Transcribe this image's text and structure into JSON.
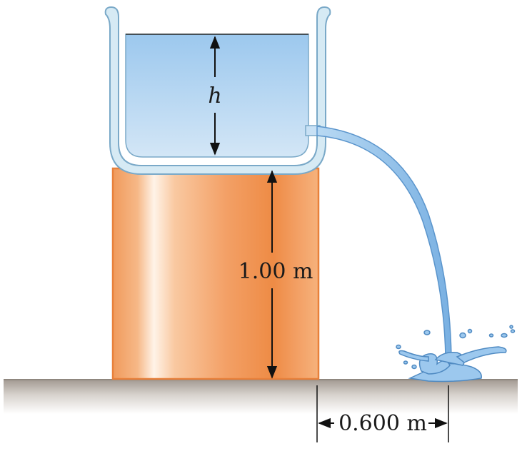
{
  "labels": {
    "water_height": "h",
    "table_height": "1.00 m",
    "horizontal_distance": "0.600 m"
  },
  "colors": {
    "water_top": "#9cc8ee",
    "water_bottom": "#cfe3f5",
    "container_outline": "#7aa9c8",
    "container_rim": "#d6eaf4",
    "table_light": "#fde8d4",
    "table_mid": "#f4a065",
    "table_dark": "#ef8a45",
    "table_edge": "#e8803a",
    "ground_top": "#a39a92",
    "ground_bottom": "#ffffff",
    "stream": "#8fc0ea",
    "stream_edge": "#5b95cc",
    "arrow": "#111111"
  }
}
